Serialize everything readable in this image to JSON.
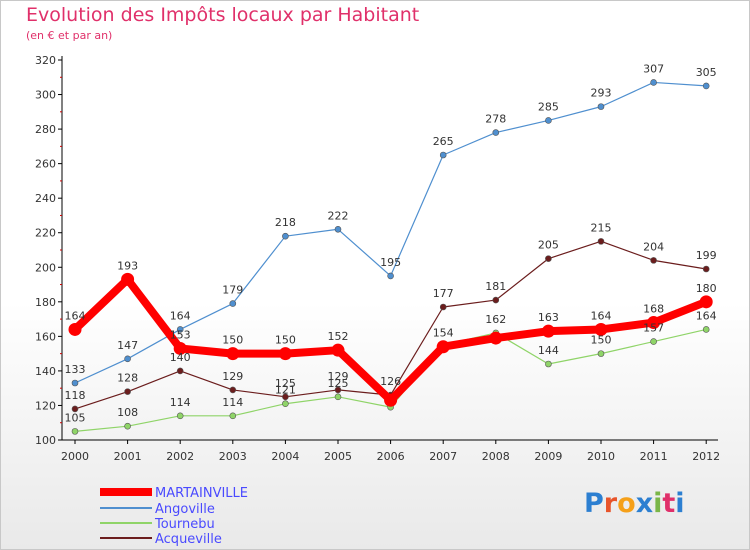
{
  "header": {
    "title": "Evolution des Impôts locaux par Habitant",
    "subtitle": "(en € et par an)"
  },
  "logo": {
    "letters": [
      {
        "ch": "P",
        "color": "#2c7fd1"
      },
      {
        "ch": "r",
        "color": "#e8542a"
      },
      {
        "ch": "o",
        "color": "#f5a019"
      },
      {
        "ch": "x",
        "color": "#2c7fd1"
      },
      {
        "ch": "i",
        "color": "#7ab648"
      },
      {
        "ch": "t",
        "color": "#e0306a"
      },
      {
        "ch": "i",
        "color": "#2c7fd1"
      }
    ]
  },
  "chart_data": {
    "type": "line",
    "title": "Evolution des Impôts locaux par Habitant",
    "subtitle": "(en € et par an)",
    "x": [
      "2000",
      "2001",
      "2002",
      "2003",
      "2004",
      "2005",
      "2006",
      "2007",
      "2008",
      "2009",
      "2010",
      "2011",
      "2012"
    ],
    "ylim": [
      100,
      320
    ],
    "yticks": [
      100,
      120,
      140,
      160,
      180,
      200,
      220,
      240,
      260,
      280,
      300,
      320
    ],
    "grid": false,
    "legend_position": "bottom-left",
    "series": [
      {
        "name": "MARTAINVILLE",
        "color": "#ff0000",
        "values": [
          164,
          193,
          153,
          150,
          150,
          152,
          123,
          154,
          159,
          163,
          164,
          168,
          180
        ],
        "labels": [
          "164",
          "193",
          "153",
          "150",
          "150",
          "152",
          "",
          "154",
          "",
          "163",
          "164",
          "168",
          "180"
        ]
      },
      {
        "name": "Angoville",
        "color": "#4f8fcf",
        "values": [
          133,
          147,
          164,
          179,
          218,
          222,
          195,
          265,
          278,
          285,
          293,
          307,
          305
        ],
        "labels": [
          "133",
          "147",
          "164",
          "179",
          "218",
          "222",
          "195",
          "265",
          "278",
          "285",
          "293",
          "307",
          "305"
        ]
      },
      {
        "name": "Tournebu",
        "color": "#8fd468",
        "values": [
          105,
          108,
          114,
          114,
          121,
          125,
          119,
          155,
          162,
          144,
          150,
          157,
          164
        ],
        "labels": [
          "105",
          "108",
          "114",
          "114",
          "121",
          "125",
          "",
          "",
          "162",
          "144",
          "150",
          "157",
          "164"
        ]
      },
      {
        "name": "Acqueville",
        "color": "#6b1d1d",
        "values": [
          118,
          128,
          140,
          129,
          125,
          129,
          126,
          177,
          181,
          205,
          215,
          204,
          199
        ],
        "labels": [
          "118",
          "128",
          "140",
          "129",
          "125",
          "129",
          "126",
          "177",
          "181",
          "205",
          "215",
          "204",
          "199"
        ]
      }
    ]
  }
}
